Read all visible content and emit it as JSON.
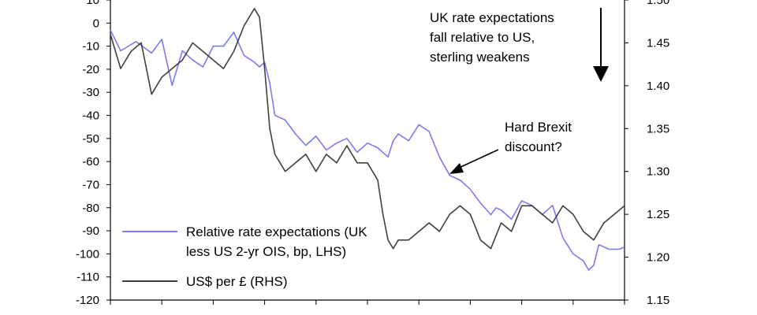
{
  "chart_data": {
    "type": "line",
    "title": "",
    "xlabel": "",
    "left_axis": {
      "ylim": [
        -120,
        10
      ],
      "ticks": [
        10,
        0,
        -10,
        -20,
        -30,
        -40,
        -50,
        -60,
        -70,
        -80,
        -90,
        -100,
        -110,
        -120
      ],
      "tick_labels": [
        "10",
        "0",
        "-10",
        "-20",
        "-30",
        "-40",
        "-50",
        "-60",
        "-70",
        "-80",
        "-90",
        "-100",
        "-110",
        "-120"
      ]
    },
    "right_axis": {
      "ylim": [
        1.15,
        1.5
      ],
      "ticks": [
        1.5,
        1.45,
        1.4,
        1.35,
        1.3,
        1.25,
        1.2,
        1.15
      ],
      "tick_labels": [
        "1.50",
        "1.45",
        "1.40",
        "1.35",
        "1.30",
        "1.25",
        "1.20",
        "1.15"
      ]
    },
    "xlim": [
      0,
      100
    ],
    "grid": false,
    "legend_position": "bottom-left",
    "series": [
      {
        "name": "Relative rate expectations (UK less US 2-yr OIS, bp, LHS)",
        "axis": "left",
        "color": "#7b7bf0",
        "x": [
          0,
          2,
          5,
          8,
          10,
          12,
          14,
          16,
          18,
          20,
          22,
          24,
          26,
          28,
          29,
          30,
          31,
          32,
          34,
          36,
          38,
          40,
          42,
          44,
          46,
          48,
          50,
          52,
          54,
          55,
          56,
          58,
          60,
          62,
          64,
          66,
          68,
          70,
          72,
          74,
          75,
          76,
          78,
          80,
          82,
          84,
          86,
          88,
          90,
          92,
          93,
          94,
          95,
          96,
          97,
          98,
          99,
          100
        ],
        "values": [
          -3,
          -12,
          -8,
          -13,
          -7,
          -27,
          -12,
          -16,
          -19,
          -10,
          -10,
          -4,
          -14,
          -17,
          -19,
          -17,
          -26,
          -40,
          -42,
          -48,
          -53,
          -49,
          -55,
          -52,
          -50,
          -56,
          -52,
          -54,
          -58,
          -51,
          -48,
          -51,
          -44,
          -47,
          -58,
          -66,
          -68,
          -72,
          -78,
          -83,
          -80,
          -81,
          -85,
          -77,
          -79,
          -83,
          -79,
          -93,
          -100,
          -103,
          -107,
          -105,
          -96,
          -97,
          -98,
          -98,
          -98,
          -97
        ]
      },
      {
        "name": "US$ per £ (RHS)",
        "axis": "right",
        "color": "#404040",
        "x": [
          0,
          2,
          4,
          6,
          8,
          10,
          12,
          14,
          16,
          18,
          20,
          22,
          24,
          26,
          28,
          29,
          30,
          31,
          32,
          34,
          36,
          38,
          40,
          42,
          44,
          46,
          48,
          50,
          52,
          53,
          54,
          55,
          56,
          58,
          60,
          62,
          64,
          66,
          68,
          70,
          72,
          74,
          76,
          78,
          80,
          82,
          84,
          86,
          88,
          90,
          92,
          94,
          95,
          96,
          98,
          100
        ],
        "values": [
          1.46,
          1.42,
          1.44,
          1.45,
          1.39,
          1.41,
          1.42,
          1.43,
          1.45,
          1.44,
          1.43,
          1.42,
          1.44,
          1.47,
          1.49,
          1.48,
          1.42,
          1.35,
          1.32,
          1.3,
          1.31,
          1.32,
          1.3,
          1.32,
          1.31,
          1.33,
          1.31,
          1.31,
          1.29,
          1.25,
          1.22,
          1.21,
          1.22,
          1.22,
          1.23,
          1.24,
          1.23,
          1.25,
          1.26,
          1.25,
          1.22,
          1.21,
          1.24,
          1.23,
          1.26,
          1.26,
          1.25,
          1.24,
          1.26,
          1.25,
          1.23,
          1.22,
          1.23,
          1.24,
          1.25,
          1.26
        ]
      }
    ],
    "annotations": [
      {
        "lines": [
          "UK rate expectations",
          "fall relative to US,",
          "sterling weakens"
        ]
      },
      {
        "lines": [
          "Hard Brexit",
          "discount?"
        ]
      }
    ],
    "x_tick_count": 10
  }
}
